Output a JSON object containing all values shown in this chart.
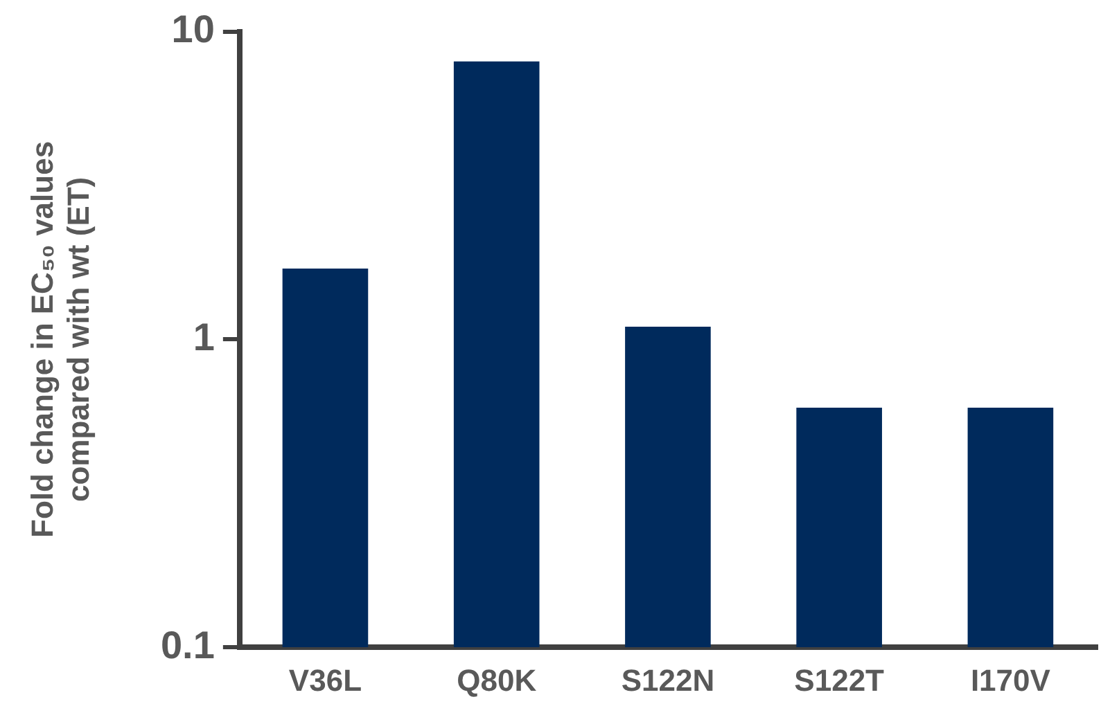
{
  "chart_data": {
    "type": "bar",
    "ylabel": "Fold change in EC₅₀ values compared with wt (ET)",
    "categories": [
      "V36L",
      "Q80K",
      "S122N",
      "S122T",
      "I170V"
    ],
    "values": [
      1.7,
      8,
      1.1,
      0.6,
      0.6
    ],
    "color": "#002a5c",
    "log": true,
    "ylim": [
      0.1,
      10
    ],
    "yticks": [
      0.1,
      1,
      10
    ],
    "grid": false,
    "legend": false
  }
}
